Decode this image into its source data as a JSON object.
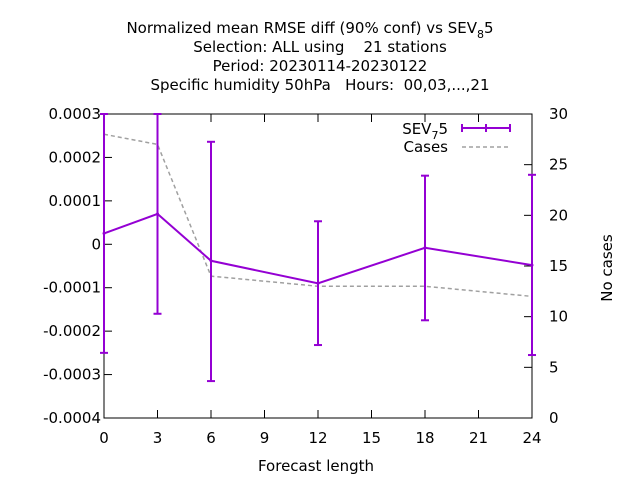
{
  "chart_data": {
    "type": "line",
    "title_lines": [
      "Normalized mean RMSE diff (90% conf) vs SEV",
      "Selection: ALL using    21 stations",
      "Period: 20230114-20230122",
      "Specific humidity 50hPa   Hours:  00,03,...,21"
    ],
    "title_sub": "8",
    "title_tail": "5",
    "xlabel": "Forecast length",
    "y2label": "No cases",
    "xlim": [
      0,
      24
    ],
    "ylim": [
      -0.0004,
      0.0003
    ],
    "y2lim": [
      0,
      30
    ],
    "xticks": [
      0,
      3,
      6,
      9,
      12,
      15,
      18,
      21,
      24
    ],
    "xtick_labels": [
      "0",
      "3",
      "6",
      "9",
      "12",
      "15",
      "18",
      "21",
      "24"
    ],
    "yticks": [
      -0.0004,
      -0.0003,
      -0.0002,
      -0.0001,
      0,
      0.0001,
      0.0002,
      0.0003
    ],
    "ytick_labels": [
      "-0.0004",
      "-0.0003",
      "-0.0002",
      "-0.0001",
      "0",
      "0.0001",
      "0.0002",
      "0.0003"
    ],
    "y2ticks": [
      0,
      5,
      10,
      15,
      20,
      25,
      30
    ],
    "y2tick_labels": [
      "0",
      "5",
      "10",
      "15",
      "20",
      "25",
      "30"
    ],
    "grid": false,
    "legend_position": "top-right",
    "series": [
      {
        "name": "SEV",
        "name_sub": "7",
        "name_tail": "5",
        "color": "#9400d3",
        "axis": "y",
        "x": [
          0,
          3,
          6,
          12,
          18,
          24
        ],
        "y": [
          2.5e-05,
          7e-05,
          -3.8e-05,
          -9e-05,
          -8e-06,
          -4.8e-05
        ],
        "err_low": [
          -0.00025,
          -0.00016,
          -0.000315,
          -0.000232,
          -0.000175,
          -0.000255
        ],
        "err_high": [
          0.0003,
          0.0003,
          0.000236,
          5.3e-05,
          0.000158,
          0.00016
        ]
      },
      {
        "name": "Cases",
        "color": "#a0a0a0",
        "axis": "y2",
        "dashed": true,
        "x": [
          0,
          3,
          6,
          12,
          18,
          24
        ],
        "y": [
          28,
          27,
          14,
          13,
          13,
          12
        ]
      }
    ]
  }
}
